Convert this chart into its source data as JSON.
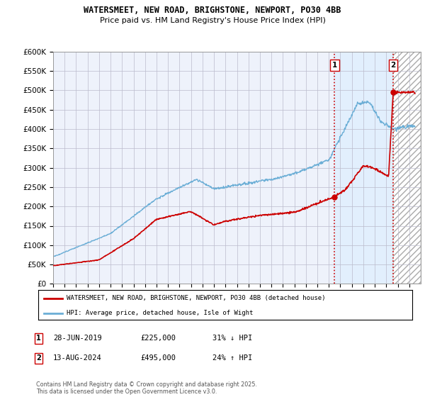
{
  "title": "WATERSMEET, NEW ROAD, BRIGHSTONE, NEWPORT, PO30 4BB",
  "subtitle": "Price paid vs. HM Land Registry's House Price Index (HPI)",
  "ylabel_ticks": [
    "£0",
    "£50K",
    "£100K",
    "£150K",
    "£200K",
    "£250K",
    "£300K",
    "£350K",
    "£400K",
    "£450K",
    "£500K",
    "£550K",
    "£600K"
  ],
  "ytick_values": [
    0,
    50000,
    100000,
    150000,
    200000,
    250000,
    300000,
    350000,
    400000,
    450000,
    500000,
    550000,
    600000
  ],
  "xmin": 1995,
  "xmax": 2027,
  "ymin": 0,
  "ymax": 600000,
  "hpi_color": "#6baed6",
  "price_color": "#cc0000",
  "point1_date": "28-JUN-2019",
  "point1_price": 225000,
  "point1_label": "31% ↓ HPI",
  "point1_x": 2019.5,
  "point2_date": "13-AUG-2024",
  "point2_price": 495000,
  "point2_label": "24% ↑ HPI",
  "point2_x": 2024.6,
  "legend_label_red": "WATERSMEET, NEW ROAD, BRIGHSTONE, NEWPORT, PO30 4BB (detached house)",
  "legend_label_blue": "HPI: Average price, detached house, Isle of Wight",
  "footnote": "Contains HM Land Registry data © Crown copyright and database right 2025.\nThis data is licensed under the Open Government Licence v3.0.",
  "dashed_line_color": "#cc0000",
  "background_color": "#eef2fb",
  "grid_color": "#bbbbcc"
}
